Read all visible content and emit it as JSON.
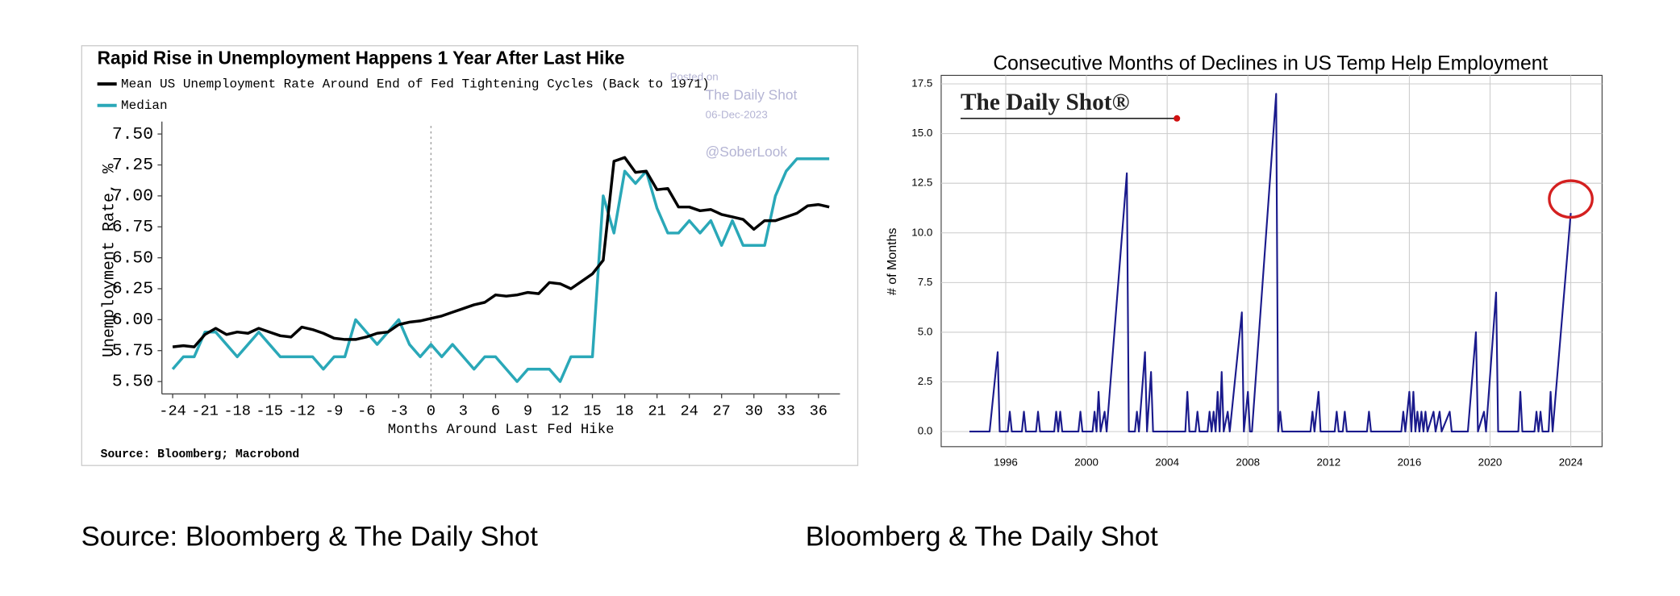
{
  "chart_data": [
    {
      "type": "line",
      "title": "Rapid Rise in Unemployment Happens 1 Year After Last Hike",
      "y_label": "Unemployment Rate, %",
      "x_label": "Months Around Last Fed Hike",
      "source": "Source: Bloomberg; Macrobond",
      "annotations": [
        "Posted on",
        "The Daily Shot",
        "06-Dec-2023",
        "@SoberLook"
      ],
      "reference_line_x": 0,
      "x": [
        -24,
        -23,
        -22,
        -21,
        -20,
        -19,
        -18,
        -17,
        -16,
        -15,
        -14,
        -13,
        -12,
        -11,
        -10,
        -9,
        -8,
        -7,
        -6,
        -5,
        -4,
        -3,
        -2,
        -1,
        0,
        1,
        2,
        3,
        4,
        5,
        6,
        7,
        8,
        9,
        10,
        11,
        12,
        13,
        14,
        15,
        16,
        17,
        18,
        19,
        20,
        21,
        22,
        23,
        24,
        25,
        26,
        27,
        28,
        29,
        30,
        31,
        32,
        33,
        34,
        35,
        36,
        37
      ],
      "series": [
        {
          "name": "Mean US Unemployment Rate Around End of Fed Tightening Cycles (Back to 1971)",
          "color": "#000000",
          "values": [
            5.78,
            5.79,
            5.78,
            5.88,
            5.93,
            5.88,
            5.9,
            5.89,
            5.93,
            5.9,
            5.87,
            5.86,
            5.94,
            5.92,
            5.89,
            5.85,
            5.84,
            5.84,
            5.86,
            5.89,
            5.9,
            5.96,
            5.98,
            5.99,
            6.01,
            6.03,
            6.06,
            6.09,
            6.12,
            6.14,
            6.2,
            6.19,
            6.2,
            6.22,
            6.21,
            6.3,
            6.29,
            6.25,
            6.31,
            6.37,
            6.48,
            7.28,
            7.31,
            7.19,
            7.2,
            7.05,
            7.06,
            6.91,
            6.91,
            6.88,
            6.89,
            6.85,
            6.83,
            6.81,
            6.73,
            6.8,
            6.8,
            6.83,
            6.86,
            6.92,
            6.93,
            6.91
          ]
        },
        {
          "name": "Median",
          "color": "#2aa8b8",
          "values": [
            5.6,
            5.7,
            5.7,
            5.9,
            5.9,
            5.8,
            5.7,
            5.8,
            5.9,
            5.8,
            5.7,
            5.7,
            5.7,
            5.7,
            5.6,
            5.7,
            5.7,
            6.0,
            5.9,
            5.8,
            5.9,
            6.0,
            5.8,
            5.7,
            5.8,
            5.7,
            5.8,
            5.7,
            5.6,
            5.7,
            5.7,
            5.6,
            5.5,
            5.6,
            5.6,
            5.6,
            5.5,
            5.7,
            5.7,
            5.7,
            7.0,
            6.7,
            7.2,
            7.1,
            7.2,
            6.9,
            6.7,
            6.7,
            6.8,
            6.7,
            6.8,
            6.6,
            6.8,
            6.6,
            6.6,
            6.6,
            7.0,
            7.2,
            7.3,
            7.3,
            7.3,
            7.3
          ]
        }
      ],
      "xlim": [
        -25,
        38
      ],
      "xticks": [
        -24,
        -21,
        -18,
        -15,
        -12,
        -9,
        -6,
        -3,
        0,
        3,
        6,
        9,
        12,
        15,
        18,
        21,
        24,
        27,
        30,
        33,
        36
      ],
      "ylim": [
        5.4,
        7.6
      ],
      "yticks": [
        {
          "value": 5.5,
          "label": "5.50"
        },
        {
          "value": 5.75,
          "label": "5.75"
        },
        {
          "value": 6.0,
          "label": "6.00"
        },
        {
          "value": 6.25,
          "label": "6.25"
        },
        {
          "value": 6.5,
          "label": "6.50"
        },
        {
          "value": 6.75,
          "label": "6.75"
        },
        {
          "value": 7.0,
          "label": "7.00"
        },
        {
          "value": 7.25,
          "label": "7.25"
        },
        {
          "value": 7.5,
          "label": "7.50"
        }
      ],
      "grid": false
    },
    {
      "type": "line",
      "title": "Consecutive Months of Declines in US Temp Help Employment",
      "y_label": "# of Months",
      "annotations": [
        "The Daily Shot®"
      ],
      "color": "#1a1a8c",
      "x": [
        1994.2,
        1995.2,
        1995.6,
        1995.7,
        1996.1,
        1996.2,
        1996.3,
        1996.8,
        1996.9,
        1997.0,
        1997.5,
        1997.6,
        1997.7,
        1998.4,
        1998.5,
        1998.6,
        1998.7,
        1998.8,
        1999.6,
        1999.7,
        1999.8,
        2000.3,
        2000.4,
        2000.5,
        2000.6,
        2000.7,
        2000.9,
        2001.0,
        2002.0,
        2002.1,
        2002.4,
        2002.5,
        2002.6,
        2002.9,
        2003.0,
        2003.2,
        2003.3,
        2004.9,
        2005.0,
        2005.1,
        2005.4,
        2005.5,
        2005.6,
        2006.0,
        2006.1,
        2006.2,
        2006.3,
        2006.4,
        2006.5,
        2006.6,
        2006.7,
        2006.8,
        2007.0,
        2007.1,
        2007.7,
        2007.8,
        2008.0,
        2008.1,
        2008.2,
        2009.4,
        2009.5,
        2009.6,
        2009.7,
        2011.1,
        2011.2,
        2011.3,
        2011.4,
        2011.5,
        2011.6,
        2012.3,
        2012.4,
        2012.5,
        2012.7,
        2012.8,
        2012.9,
        2013.9,
        2014.0,
        2014.1,
        2015.6,
        2015.7,
        2015.8,
        2016.0,
        2016.1,
        2016.2,
        2016.3,
        2016.4,
        2016.5,
        2016.6,
        2016.7,
        2016.8,
        2016.9,
        2017.2,
        2017.3,
        2017.5,
        2017.6,
        2018.0,
        2018.1,
        2018.9,
        2019.3,
        2019.4,
        2019.7,
        2019.8,
        2020.3,
        2020.4,
        2021.4,
        2021.5,
        2021.6,
        2022.2,
        2022.3,
        2022.4,
        2022.5,
        2022.6,
        2022.9,
        2023.0,
        2023.1,
        2024.0
      ],
      "values": [
        0,
        0,
        4,
        0,
        0,
        1,
        0,
        0,
        1,
        0,
        0,
        1,
        0,
        0,
        1,
        0,
        1,
        0,
        0,
        1,
        0,
        0,
        1,
        0,
        2,
        0,
        1,
        0,
        13,
        0,
        0,
        1,
        0,
        4,
        0,
        3,
        0,
        0,
        2,
        0,
        0,
        1,
        0,
        0,
        1,
        0,
        1,
        0,
        2,
        0,
        3,
        0,
        1,
        0,
        6,
        0,
        2,
        0,
        0,
        17,
        0,
        1,
        0,
        0,
        1,
        0,
        1,
        2,
        0,
        0,
        1,
        0,
        0,
        1,
        0,
        0,
        1,
        0,
        0,
        1,
        0,
        2,
        0,
        2,
        0,
        1,
        0,
        1,
        0,
        1,
        0,
        1,
        0,
        1,
        0,
        1,
        0,
        0,
        5,
        0,
        1,
        0,
        7,
        0,
        0,
        2,
        0,
        0,
        1,
        0,
        1,
        0,
        0,
        2,
        0,
        11
      ],
      "xlim": [
        1992.8,
        2025.55
      ],
      "xticks": [
        1996,
        2000,
        2004,
        2008,
        2012,
        2016,
        2020,
        2024
      ],
      "ylim": [
        -0.76,
        17.93
      ],
      "yticks": [
        {
          "value": 0,
          "label": "0.0"
        },
        {
          "value": 2.5,
          "label": "2.5"
        },
        {
          "value": 5,
          "label": "5.0"
        },
        {
          "value": 7.5,
          "label": "7.5"
        },
        {
          "value": 10,
          "label": "10.0"
        },
        {
          "value": 12.5,
          "label": "12.5"
        },
        {
          "value": 15,
          "label": "15.0"
        },
        {
          "value": 17.5,
          "label": "17.5"
        }
      ],
      "grid": true
    }
  ],
  "captions": [
    "Source: Bloomberg & The Daily Shot",
    "Bloomberg & The Daily Shot"
  ]
}
